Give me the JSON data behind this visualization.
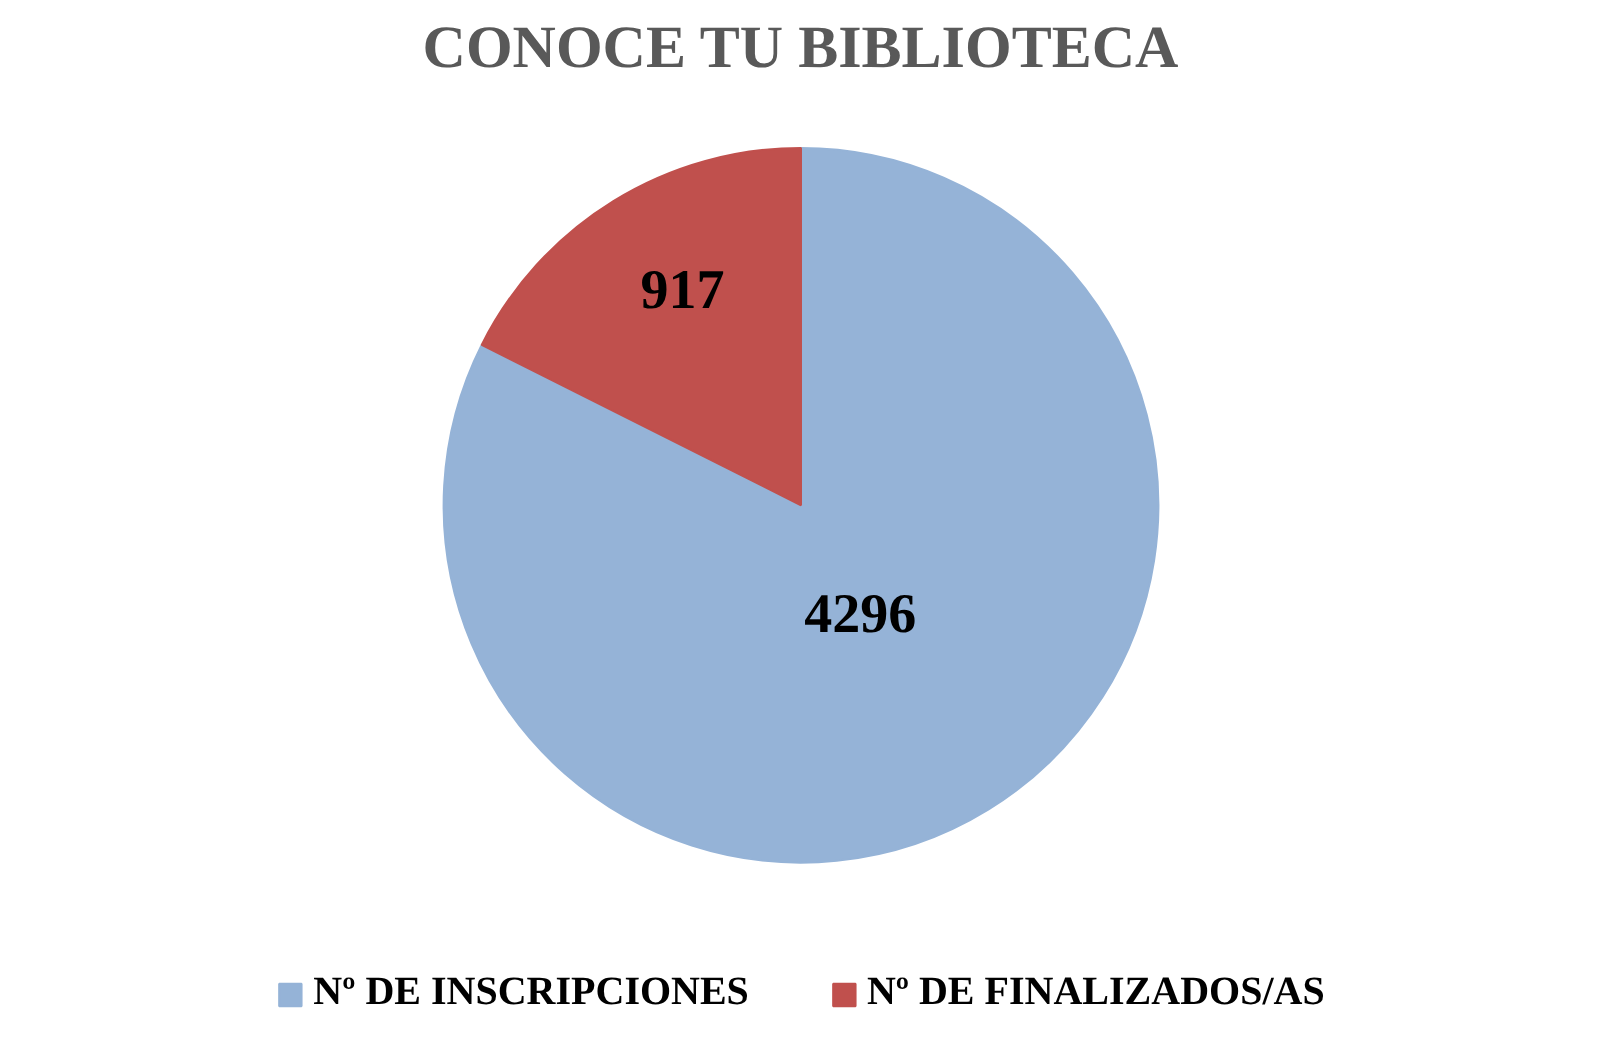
{
  "chart_data": {
    "type": "pie",
    "title": "CONOCE TU BIBLIOTECA",
    "categories": [
      "Nº DE INSCRIPCIONES",
      "Nº DE FINALIZADOS/AS"
    ],
    "values": [
      4296,
      917
    ],
    "colors": [
      "#95b3d7",
      "#c0504d"
    ],
    "data_labels": true,
    "legend": "bottom"
  }
}
